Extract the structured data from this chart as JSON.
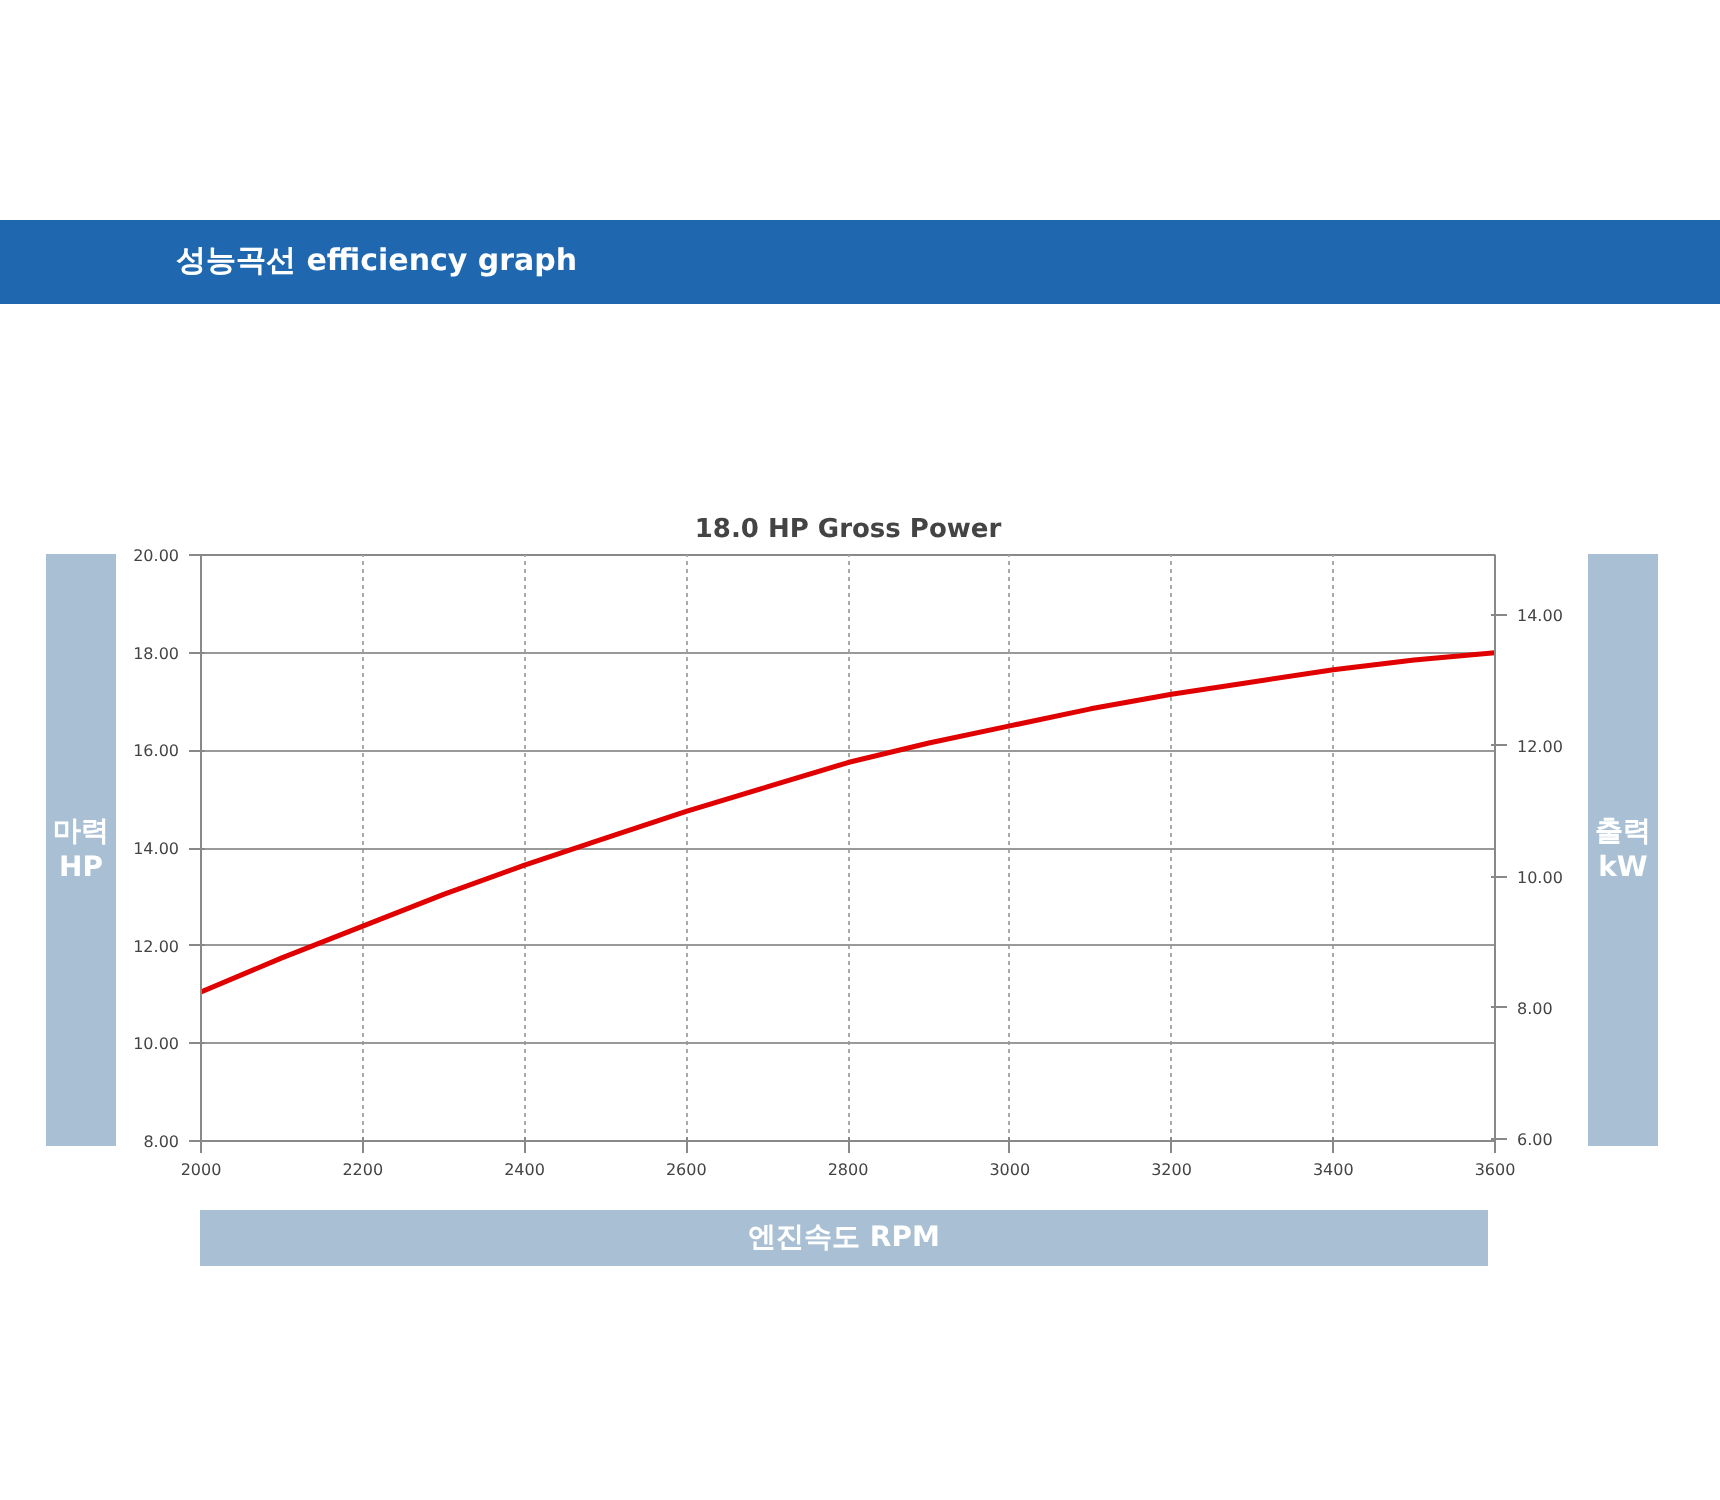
{
  "chart_data": {
    "type": "line",
    "title": "18.0 HP Gross Power",
    "xlabel": "엔진속도 RPM",
    "ylabel": "마력 HP",
    "y2label": "출력 kW",
    "annotations": [
      "성능곡선 efficiency graph"
    ],
    "x": [
      2000,
      2100,
      2200,
      2300,
      2400,
      2500,
      2600,
      2700,
      2800,
      2900,
      3000,
      3100,
      3200,
      3300,
      3400,
      3500,
      3600
    ],
    "series": [
      {
        "color": "#e00000",
        "values": [
          11.05,
          11.75,
          12.4,
          13.05,
          13.65,
          14.2,
          14.75,
          15.25,
          15.75,
          16.15,
          16.5,
          16.85,
          17.15,
          17.4,
          17.65,
          17.85,
          18.0
        ]
      }
    ],
    "xlim": [
      2000,
      3600
    ],
    "xticks": [
      2000,
      2200,
      2400,
      2600,
      2800,
      3000,
      3200,
      3400,
      3600
    ],
    "ylim": [
      8,
      20
    ],
    "yticks": [
      {
        "value": 8,
        "label": "8.00"
      },
      {
        "value": 10,
        "label": "10.00"
      },
      {
        "value": 12,
        "label": "12.00"
      },
      {
        "value": 14,
        "label": "14.00"
      },
      {
        "value": 16,
        "label": "16.00"
      },
      {
        "value": 18,
        "label": "18.00"
      },
      {
        "value": 20,
        "label": "20.00"
      }
    ],
    "y2lim": [
      5.97,
      14.91
    ],
    "y2ticks": [
      {
        "value": 6,
        "label": "6.00"
      },
      {
        "value": 8,
        "label": "8.00"
      },
      {
        "value": 10,
        "label": "10.00"
      },
      {
        "value": 12,
        "label": "12.00"
      },
      {
        "value": 14,
        "label": "14.00"
      }
    ],
    "grid": true,
    "marker": "none",
    "line_style": "solid"
  }
}
